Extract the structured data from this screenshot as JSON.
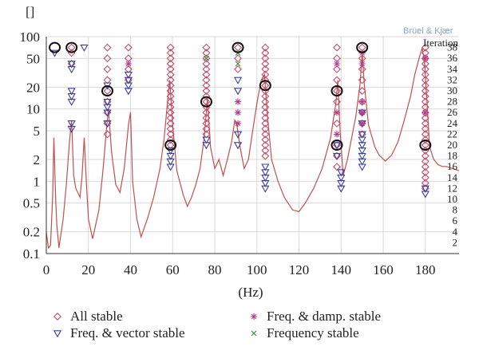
{
  "chart_data": {
    "type": "scatter",
    "title": "",
    "brand_label": "Brüel & Kjær",
    "xlabel": "(Hz)",
    "ylabel": "[]",
    "y2label": "Iteration",
    "xlim": [
      0,
      196
    ],
    "ylim": [
      0.1,
      100
    ],
    "yscale": "log",
    "y2lim": [
      0,
      40
    ],
    "x_ticks": [
      0,
      20,
      40,
      60,
      80,
      100,
      120,
      140,
      160,
      180
    ],
    "y_ticks": [
      0.1,
      0.2,
      0.5,
      1,
      2,
      5,
      10,
      20,
      50,
      100
    ],
    "y_tick_labels": [
      "0.1",
      "0.2",
      "0.5",
      "1",
      "2",
      "5",
      "10",
      "20",
      "50",
      "100"
    ],
    "y2_ticks": [
      2,
      4,
      6,
      8,
      10,
      12,
      14,
      16,
      18,
      20,
      22,
      24,
      26,
      28,
      30,
      32,
      34,
      36,
      38
    ],
    "grid": true,
    "legend": [
      {
        "label": "All stable",
        "marker": "diamond",
        "color": "#c0506c"
      },
      {
        "label": "Freq. & vector stable",
        "marker": "triangle-down",
        "color": "#3b3f9a"
      },
      {
        "label": "Freq. & damp. stable",
        "marker": "asterisk",
        "color": "#b43c8c"
      },
      {
        "label": "Frequency stable",
        "marker": "x",
        "color": "#3a8a3a"
      }
    ],
    "legend_placement": "below",
    "curve": {
      "color": "#c0504d",
      "x": [
        0,
        1,
        2,
        3,
        3.6,
        4,
        4.5,
        5,
        6,
        8,
        9.5,
        11,
        12,
        13,
        14,
        16,
        17,
        18,
        19,
        20,
        22,
        25,
        27,
        28.5,
        29.5,
        31,
        33,
        35,
        37,
        39,
        40,
        41,
        43,
        45,
        48,
        51,
        54,
        56,
        57.5,
        58.6,
        60,
        62,
        65,
        67,
        69,
        71,
        73,
        75,
        76.5,
        78,
        80,
        82,
        84,
        86,
        88,
        89.5,
        90.5,
        92,
        94,
        96,
        98,
        100,
        102,
        103.6,
        105,
        107,
        110,
        113,
        117,
        120,
        123,
        127,
        131,
        135,
        137.5,
        138.4,
        139.5,
        141,
        143,
        145,
        147,
        149,
        150,
        151,
        153,
        156,
        158,
        161,
        164,
        167,
        170,
        173,
        175,
        177,
        178.5,
        179.6,
        181,
        182,
        184,
        186,
        188,
        190,
        193,
        196
      ],
      "y": [
        0.2,
        0.12,
        0.13,
        0.6,
        4.0,
        1.5,
        0.5,
        0.25,
        0.12,
        0.3,
        0.9,
        3.5,
        7.0,
        1.2,
        0.8,
        0.6,
        1.2,
        4.0,
        1.0,
        0.3,
        0.16,
        0.4,
        1.5,
        5.0,
        10.0,
        2.5,
        0.9,
        0.7,
        1.5,
        6.0,
        9.0,
        1.0,
        0.3,
        0.17,
        0.3,
        0.6,
        1.5,
        4.0,
        12.0,
        25.0,
        6.0,
        1.4,
        0.65,
        0.45,
        0.6,
        0.9,
        1.5,
        4.0,
        14.0,
        3.0,
        1.5,
        2.0,
        1.2,
        2.0,
        3.5,
        7.0,
        6.0,
        3.0,
        1.5,
        2.0,
        5.0,
        12.0,
        25.0,
        30.0,
        8.0,
        2.0,
        1.0,
        0.6,
        0.4,
        0.38,
        0.5,
        0.8,
        1.5,
        4.0,
        12.0,
        25.0,
        5.0,
        1.2,
        2.0,
        4.0,
        8.0,
        22.0,
        60.0,
        22.0,
        6.0,
        3.0,
        2.3,
        1.9,
        2.3,
        3.5,
        7.0,
        15.0,
        30.0,
        50.0,
        70.0,
        45.0,
        10.0,
        3.0,
        2.0,
        1.7,
        1.6,
        1.6,
        1.5,
        1.4
      ]
    },
    "modes_hz": [
      4,
      12,
      29,
      39,
      59,
      76,
      91,
      104,
      138,
      150,
      180
    ],
    "marker_series": [
      {
        "label": "All stable",
        "points": [
          [
            12,
            35
          ],
          [
            12,
            37
          ],
          [
            12,
            38
          ],
          [
            29,
            22
          ],
          [
            29,
            24
          ],
          [
            29,
            26
          ],
          [
            29,
            28
          ],
          [
            29,
            30
          ],
          [
            29,
            32
          ],
          [
            29,
            34
          ],
          [
            29,
            36
          ],
          [
            29,
            38
          ],
          [
            39,
            32
          ],
          [
            39,
            34
          ],
          [
            39,
            36
          ],
          [
            39,
            38
          ],
          [
            59,
            20
          ],
          [
            59,
            21
          ],
          [
            59,
            22
          ],
          [
            59,
            23
          ],
          [
            59,
            24
          ],
          [
            59,
            25
          ],
          [
            59,
            26
          ],
          [
            59,
            27
          ],
          [
            59,
            28
          ],
          [
            59,
            29
          ],
          [
            59,
            30
          ],
          [
            59,
            31
          ],
          [
            59,
            32
          ],
          [
            59,
            33
          ],
          [
            59,
            34
          ],
          [
            59,
            35
          ],
          [
            59,
            36
          ],
          [
            59,
            37
          ],
          [
            59,
            38
          ],
          [
            76,
            22
          ],
          [
            76,
            23
          ],
          [
            76,
            24
          ],
          [
            76,
            25
          ],
          [
            76,
            26
          ],
          [
            76,
            27
          ],
          [
            76,
            28
          ],
          [
            76,
            29
          ],
          [
            76,
            30
          ],
          [
            76,
            31
          ],
          [
            76,
            32
          ],
          [
            76,
            33
          ],
          [
            76,
            34
          ],
          [
            76,
            35
          ],
          [
            76,
            36
          ],
          [
            76,
            37
          ],
          [
            76,
            38
          ],
          [
            91,
            34
          ],
          [
            91,
            36
          ],
          [
            91,
            38
          ],
          [
            104,
            18
          ],
          [
            104,
            19
          ],
          [
            104,
            20
          ],
          [
            104,
            21
          ],
          [
            104,
            22
          ],
          [
            104,
            23
          ],
          [
            104,
            24
          ],
          [
            104,
            25
          ],
          [
            104,
            26
          ],
          [
            104,
            27
          ],
          [
            104,
            28
          ],
          [
            104,
            29
          ],
          [
            104,
            30
          ],
          [
            104,
            31
          ],
          [
            104,
            32
          ],
          [
            104,
            33
          ],
          [
            104,
            34
          ],
          [
            104,
            35
          ],
          [
            104,
            36
          ],
          [
            104,
            37
          ],
          [
            104,
            38
          ],
          [
            138,
            16
          ],
          [
            138,
            18
          ],
          [
            138,
            20
          ],
          [
            138,
            24
          ],
          [
            138,
            28
          ],
          [
            138,
            30
          ],
          [
            138,
            32
          ],
          [
            138,
            34
          ],
          [
            138,
            36
          ],
          [
            138,
            38
          ],
          [
            150,
            22
          ],
          [
            150,
            24
          ],
          [
            150,
            26
          ],
          [
            150,
            28
          ],
          [
            150,
            30
          ],
          [
            150,
            32
          ],
          [
            150,
            34
          ],
          [
            150,
            36
          ],
          [
            150,
            38
          ],
          [
            180,
            12
          ],
          [
            180,
            13
          ],
          [
            180,
            14
          ],
          [
            180,
            15
          ],
          [
            180,
            16
          ],
          [
            180,
            17
          ],
          [
            180,
            18
          ],
          [
            180,
            19
          ],
          [
            180,
            20
          ],
          [
            180,
            21
          ],
          [
            180,
            22
          ],
          [
            180,
            23
          ],
          [
            180,
            24
          ],
          [
            180,
            25
          ],
          [
            180,
            26
          ],
          [
            180,
            27
          ],
          [
            180,
            28
          ],
          [
            180,
            29
          ],
          [
            180,
            30
          ],
          [
            180,
            31
          ],
          [
            180,
            32
          ],
          [
            180,
            33
          ],
          [
            180,
            34
          ],
          [
            180,
            35
          ],
          [
            180,
            36
          ],
          [
            180,
            37
          ],
          [
            180,
            38
          ]
        ]
      },
      {
        "label": "Freq. & vector stable",
        "points": [
          [
            4,
            37
          ],
          [
            12,
            23
          ],
          [
            12,
            24
          ],
          [
            12,
            28
          ],
          [
            12,
            29
          ],
          [
            12,
            30
          ],
          [
            12,
            34
          ],
          [
            12,
            35
          ],
          [
            18,
            38
          ],
          [
            29,
            24
          ],
          [
            29,
            26
          ],
          [
            29,
            27
          ],
          [
            29,
            28
          ],
          [
            29,
            31
          ],
          [
            39,
            30
          ],
          [
            39,
            31
          ],
          [
            39,
            32
          ],
          [
            39,
            33
          ],
          [
            59,
            16
          ],
          [
            59,
            17
          ],
          [
            59,
            18
          ],
          [
            59,
            19
          ],
          [
            76,
            20
          ],
          [
            76,
            21
          ],
          [
            91,
            20
          ],
          [
            91,
            22
          ],
          [
            91,
            30
          ],
          [
            91,
            32
          ],
          [
            104,
            12
          ],
          [
            104,
            13
          ],
          [
            104,
            14
          ],
          [
            104,
            15
          ],
          [
            104,
            16
          ],
          [
            138,
            18
          ],
          [
            138,
            20
          ],
          [
            140,
            12
          ],
          [
            140,
            13
          ],
          [
            140,
            14
          ],
          [
            140,
            15
          ],
          [
            150,
            16
          ],
          [
            150,
            17
          ],
          [
            150,
            18
          ],
          [
            150,
            19
          ],
          [
            150,
            20
          ],
          [
            150,
            21
          ],
          [
            150,
            22
          ],
          [
            150,
            24
          ],
          [
            150,
            26
          ],
          [
            180,
            11
          ],
          [
            180,
            12
          ]
        ]
      },
      {
        "label": "Freq. & damp. stable",
        "points": [
          [
            39,
            35
          ],
          [
            91,
            24
          ],
          [
            91,
            26
          ],
          [
            91,
            28
          ],
          [
            138,
            22
          ],
          [
            138,
            26
          ],
          [
            138,
            35
          ],
          [
            150,
            24
          ],
          [
            150,
            26
          ],
          [
            150,
            28
          ],
          [
            150,
            35
          ],
          [
            150,
            37
          ],
          [
            180,
            26
          ],
          [
            180,
            36
          ]
        ]
      },
      {
        "label": "Frequency stable",
        "points": [
          [
            76,
            36
          ],
          [
            91,
            35
          ],
          [
            91,
            37
          ]
        ]
      }
    ],
    "circled_points": [
      [
        4,
        38
      ],
      [
        12,
        38
      ],
      [
        29,
        30
      ],
      [
        59,
        20
      ],
      [
        76,
        28
      ],
      [
        91,
        38
      ],
      [
        104,
        31
      ],
      [
        138,
        20
      ],
      [
        138,
        30
      ],
      [
        150,
        38
      ],
      [
        180,
        20
      ]
    ]
  }
}
